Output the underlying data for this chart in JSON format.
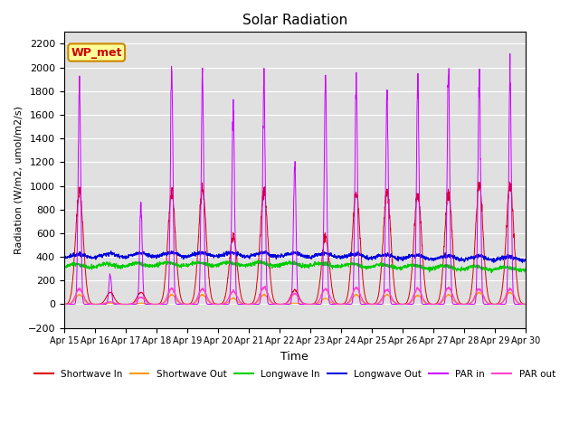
{
  "title": "Solar Radiation",
  "xlabel": "Time",
  "ylabel": "Radiation (W/m2, umol/m2/s)",
  "ylim": [
    -200,
    2300
  ],
  "yticks": [
    -200,
    0,
    200,
    400,
    600,
    800,
    1000,
    1200,
    1400,
    1600,
    1800,
    2000,
    2200
  ],
  "legend_labels": [
    "Shortwave In",
    "Shortwave Out",
    "Longwave In",
    "Longwave Out",
    "PAR in",
    "PAR out"
  ],
  "legend_colors": [
    "#dd0000",
    "#ff9900",
    "#00cc00",
    "#0000dd",
    "#cc00ff",
    "#ff44cc"
  ],
  "annotation_text": "WP_met",
  "annotation_color": "#cc0000",
  "annotation_bg": "#ffff99",
  "annotation_edge": "#cc8800",
  "bg_color": "#e0e0e0",
  "grid_color": "#ffffff",
  "num_days": 15,
  "start_day": 15,
  "day_amps_sw": [
    950,
    100,
    100,
    940,
    960,
    580,
    950,
    120,
    570,
    950,
    940,
    930,
    940,
    1000,
    1000
  ],
  "day_amps_par": [
    1880,
    250,
    860,
    2000,
    1920,
    1700,
    1920,
    1200,
    1910,
    1920,
    1760,
    1850,
    1960,
    1950,
    1960
  ],
  "day_amps_par_out": [
    130,
    20,
    60,
    130,
    130,
    110,
    140,
    90,
    130,
    140,
    120,
    130,
    140,
    130,
    130
  ],
  "day_amps_sw_out": [
    80,
    10,
    10,
    80,
    80,
    50,
    80,
    10,
    50,
    80,
    80,
    75,
    80,
    100,
    100
  ]
}
